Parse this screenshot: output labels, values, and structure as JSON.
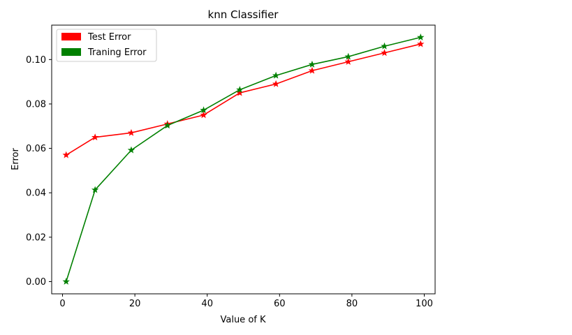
{
  "chart_data": {
    "type": "line",
    "title": "knn Classifier",
    "xlabel": "Value of K",
    "ylabel": "Error",
    "xlim": [
      -3,
      103
    ],
    "ylim": [
      -0.0055,
      0.1155
    ],
    "xticks": [
      0,
      20,
      40,
      60,
      80,
      100
    ],
    "xtick_labels": [
      "0",
      "20",
      "40",
      "60",
      "80",
      "100"
    ],
    "yticks": [
      0.0,
      0.02,
      0.04,
      0.06,
      0.08,
      0.1
    ],
    "ytick_labels": [
      "0.00",
      "0.02",
      "0.04",
      "0.06",
      "0.08",
      "0.10"
    ],
    "grid": false,
    "legend_position": "top-left",
    "x": [
      1,
      9,
      19,
      29,
      39,
      49,
      59,
      69,
      79,
      89,
      99
    ],
    "series": [
      {
        "name": "Test Error",
        "color": "#ff0000",
        "marker": "star",
        "values": [
          0.057,
          0.065,
          0.067,
          0.071,
          0.075,
          0.085,
          0.089,
          0.095,
          0.099,
          0.103,
          0.107
        ]
      },
      {
        "name": "Traning Error",
        "color": "#008000",
        "marker": "star",
        "values": [
          0.0,
          0.0413,
          0.0592,
          0.0703,
          0.0772,
          0.0864,
          0.0928,
          0.0978,
          0.1013,
          0.106,
          0.11
        ]
      }
    ]
  }
}
